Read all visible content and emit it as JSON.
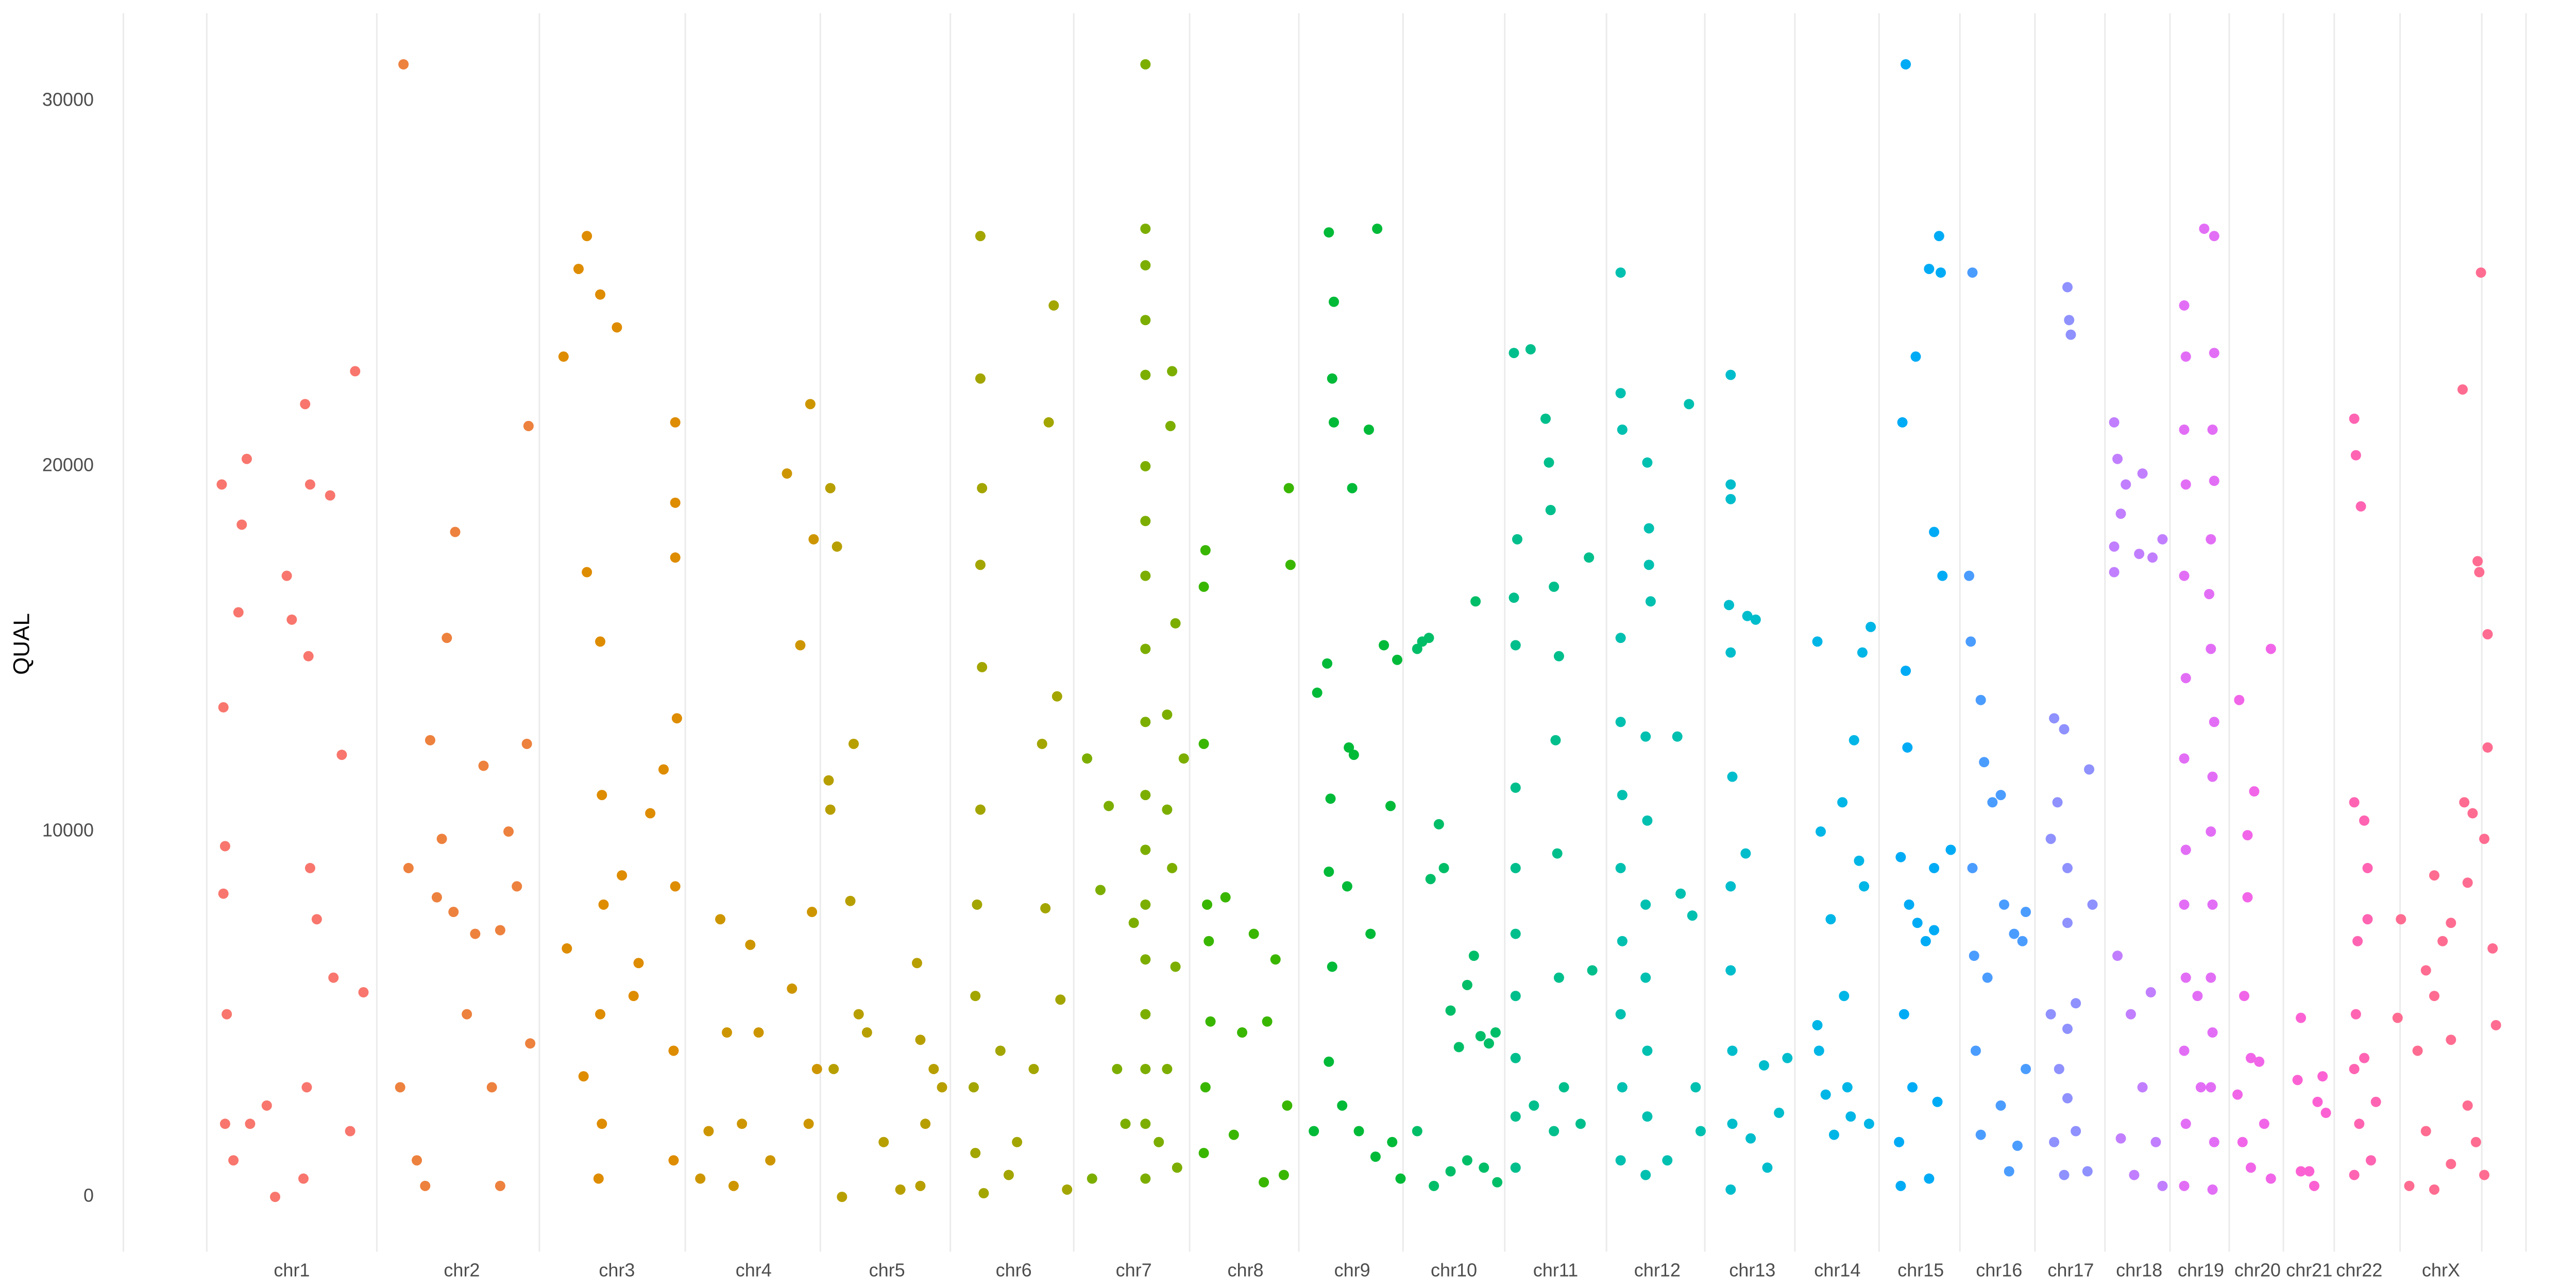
{
  "chart_data": {
    "type": "scatter",
    "y_label": "QUAL",
    "xlim": [
      74,
      1515
    ],
    "ylim": [
      -1500,
      32400
    ],
    "grid": true,
    "yticks": [
      0,
      10000,
      20000,
      30000
    ],
    "xticks": [
      {
        "value": 175,
        "label": "chr1"
      },
      {
        "value": 277,
        "label": "chr2"
      },
      {
        "value": 370,
        "label": "chr3"
      },
      {
        "value": 452,
        "label": "chr4"
      },
      {
        "value": 532,
        "label": "chr5"
      },
      {
        "value": 608,
        "label": "chr6"
      },
      {
        "value": 680,
        "label": "chr7"
      },
      {
        "value": 747,
        "label": "chr8"
      },
      {
        "value": 811,
        "label": "chr9"
      },
      {
        "value": 872,
        "label": "chr10"
      },
      {
        "value": 933,
        "label": "chr11"
      },
      {
        "value": 994,
        "label": "chr12"
      },
      {
        "value": 1051,
        "label": "chr13"
      },
      {
        "value": 1102,
        "label": "chr14"
      },
      {
        "value": 1152,
        "label": "chr15"
      },
      {
        "value": 1199,
        "label": "chr16"
      },
      {
        "value": 1242,
        "label": "chr17"
      },
      {
        "value": 1283,
        "label": "chr18"
      },
      {
        "value": 1320,
        "label": "chr19"
      },
      {
        "value": 1354,
        "label": "chr20"
      },
      {
        "value": 1385,
        "label": "chr21"
      },
      {
        "value": 1415,
        "label": "chr22"
      },
      {
        "value": 1464,
        "label": "chrX"
      }
    ],
    "series": [
      {
        "color": "#F8766D",
        "x": [
          133,
          134,
          135,
          134,
          136,
          135,
          140,
          148,
          145,
          143,
          160,
          172,
          175,
          183,
          186,
          185,
          186,
          184,
          182,
          198,
          205,
          213,
          210,
          218,
          200,
          165,
          150,
          190
        ],
        "values": [
          19500,
          13400,
          9600,
          8300,
          5000,
          2000,
          1000,
          20200,
          18400,
          16000,
          2500,
          17000,
          15800,
          21700,
          19500,
          14800,
          9000,
          3000,
          500,
          19200,
          12100,
          22600,
          1800,
          5600,
          6000,
          0,
          2000,
          7600
        ]
      },
      {
        "color": "#ED813E",
        "x": [
          242,
          245,
          240,
          250,
          258,
          265,
          273,
          268,
          272,
          280,
          290,
          295,
          300,
          305,
          310,
          317,
          316,
          318,
          255,
          285,
          262,
          300
        ],
        "values": [
          31000,
          9000,
          3000,
          1000,
          12500,
          9800,
          18200,
          15300,
          7800,
          5000,
          11800,
          3000,
          7300,
          10000,
          8500,
          21100,
          12400,
          4200,
          300,
          7200,
          8200,
          300
        ]
      },
      {
        "color": "#DE8C00",
        "x": [
          338,
          347,
          352,
          360,
          370,
          352,
          360,
          361,
          362,
          360,
          361,
          359,
          340,
          373,
          380,
          390,
          405,
          405,
          405,
          406,
          405,
          404,
          404,
          350,
          383,
          398
        ],
        "values": [
          23000,
          25400,
          26300,
          24700,
          23800,
          17100,
          15200,
          11000,
          8000,
          5000,
          2000,
          500,
          6800,
          8800,
          5500,
          10500,
          21200,
          19000,
          17500,
          13100,
          8500,
          4000,
          1000,
          3300,
          6400,
          11700
        ]
      },
      {
        "color": "#CD9600",
        "x": [
          420,
          425,
          432,
          436,
          445,
          450,
          455,
          472,
          480,
          486,
          488,
          487,
          490,
          485,
          475,
          440,
          462
        ],
        "values": [
          500,
          1800,
          7600,
          4500,
          2000,
          6900,
          4500,
          19800,
          15100,
          21700,
          18000,
          7800,
          3500,
          2000,
          5700,
          300,
          1000
        ]
      },
      {
        "color": "#B79F00",
        "x": [
          498,
          497,
          498,
          502,
          500,
          512,
          510,
          515,
          520,
          505,
          530,
          550,
          552,
          555,
          560,
          565,
          552,
          540
        ],
        "values": [
          19400,
          11400,
          10600,
          17800,
          3500,
          12400,
          8100,
          5000,
          4500,
          0,
          1500,
          6400,
          4300,
          2000,
          3500,
          3000,
          300,
          200
        ]
      },
      {
        "color": "#A3A500",
        "x": [
          588,
          588,
          589,
          588,
          589,
          588,
          586,
          585,
          584,
          585,
          590,
          600,
          610,
          620,
          625,
          627,
          629,
          632,
          634,
          636,
          640,
          605
        ],
        "values": [
          26300,
          22400,
          19400,
          17300,
          14500,
          10600,
          8000,
          5500,
          3000,
          1200,
          100,
          4000,
          1500,
          3500,
          12400,
          7900,
          21200,
          24400,
          13700,
          5400,
          200,
          600
        ]
      },
      {
        "color": "#7CAE00",
        "x": [
          687,
          687,
          687,
          687,
          687,
          687,
          687,
          687,
          687,
          687,
          687,
          687,
          687,
          687,
          687,
          687,
          687,
          687,
          652,
          660,
          665,
          670,
          675,
          680,
          703,
          702,
          705,
          700,
          700,
          703,
          705,
          700,
          706,
          710,
          655,
          695
        ],
        "values": [
          31000,
          26500,
          25500,
          24000,
          22500,
          20000,
          18500,
          17000,
          15000,
          13000,
          11000,
          9500,
          8000,
          6500,
          5000,
          3500,
          2000,
          500,
          12000,
          8400,
          10700,
          3500,
          2000,
          7500,
          22600,
          21100,
          15700,
          13200,
          10600,
          9000,
          6300,
          3500,
          800,
          12000,
          500,
          1500
        ]
      },
      {
        "color": "#39B600",
        "x": [
          722,
          723,
          722,
          724,
          725,
          726,
          723,
          722,
          735,
          745,
          752,
          760,
          765,
          773,
          774,
          772,
          770,
          740,
          758
        ],
        "values": [
          12400,
          17700,
          16700,
          8000,
          7000,
          4800,
          3000,
          1200,
          8200,
          4500,
          7200,
          4800,
          6500,
          19400,
          17300,
          2500,
          600,
          1700,
          400
        ]
      },
      {
        "color": "#00BA38",
        "x": [
          797,
          800,
          799,
          800,
          811,
          826,
          821,
          790,
          796,
          809,
          812,
          798,
          797,
          808,
          822,
          834,
          830,
          838,
          799,
          797,
          805,
          815,
          825,
          835,
          840,
          788
        ],
        "values": [
          26400,
          24500,
          22400,
          21200,
          19400,
          26500,
          21000,
          13800,
          14600,
          12300,
          12100,
          10900,
          8900,
          8500,
          7200,
          10700,
          15100,
          14700,
          6300,
          3700,
          2500,
          1800,
          1100,
          1500,
          500,
          1800
        ]
      },
      {
        "color": "#00BE67",
        "x": [
          850,
          853,
          857,
          885,
          858,
          863,
          866,
          870,
          875,
          880,
          884,
          888,
          893,
          897,
          890,
          880,
          870,
          860,
          850,
          898
        ],
        "values": [
          15000,
          15200,
          15300,
          16300,
          8700,
          10200,
          9000,
          5100,
          4100,
          5800,
          6600,
          4400,
          4200,
          4500,
          800,
          1000,
          700,
          300,
          1800,
          400
        ]
      },
      {
        "color": "#00BF8C",
        "x": [
          908,
          918,
          910,
          908,
          909,
          909,
          909,
          909,
          909,
          909,
          909,
          909,
          927,
          929,
          930,
          932,
          935,
          933,
          934,
          935,
          938,
          932,
          953,
          948,
          955,
          920
        ],
        "values": [
          23100,
          23200,
          18000,
          16400,
          15100,
          11200,
          9000,
          7200,
          5500,
          3800,
          2200,
          800,
          21300,
          20100,
          18800,
          16700,
          14800,
          12500,
          9400,
          6000,
          3000,
          1800,
          17500,
          2000,
          6200,
          2500
        ]
      },
      {
        "color": "#00C0B0",
        "x": [
          972,
          972,
          973,
          972,
          972,
          973,
          972,
          973,
          972,
          973,
          972,
          988,
          989,
          989,
          990,
          987,
          988,
          987,
          987,
          988,
          988,
          987,
          1006,
          1008,
          1013,
          1015,
          1017,
          1020,
          1000
        ],
        "values": [
          25300,
          22000,
          21000,
          15300,
          13000,
          11000,
          9000,
          7000,
          5000,
          3000,
          1000,
          20100,
          18300,
          17300,
          16300,
          12600,
          10300,
          8000,
          6000,
          4000,
          2200,
          600,
          12600,
          8300,
          21700,
          7700,
          3000,
          1800,
          1000
        ]
      },
      {
        "color": "#00BDCC",
        "x": [
          1038,
          1038,
          1038,
          1037,
          1038,
          1039,
          1038,
          1038,
          1039,
          1039,
          1038,
          1048,
          1053,
          1047,
          1050,
          1058,
          1060,
          1067,
          1072
        ],
        "values": [
          22500,
          19500,
          19100,
          16200,
          14900,
          11500,
          8500,
          6200,
          4000,
          2000,
          200,
          15900,
          15800,
          9400,
          1600,
          3600,
          800,
          2300,
          3800
        ]
      },
      {
        "color": "#00B6E6",
        "x": [
          1090,
          1092,
          1090,
          1091,
          1095,
          1098,
          1105,
          1106,
          1108,
          1110,
          1112,
          1117,
          1118,
          1122,
          1121,
          1100,
          1115
        ],
        "values": [
          15200,
          10000,
          4700,
          4000,
          2800,
          7600,
          10800,
          5500,
          3000,
          2200,
          12500,
          14900,
          8500,
          15600,
          2000,
          1700,
          9200
        ]
      },
      {
        "color": "#00ABF5",
        "x": [
          1143,
          1141,
          1149,
          1157,
          1163,
          1164,
          1160,
          1165,
          1143,
          1144,
          1140,
          1145,
          1150,
          1155,
          1160,
          1142,
          1147,
          1139,
          1140,
          1157,
          1160,
          1170,
          1162
        ],
        "values": [
          31000,
          21200,
          23000,
          25400,
          26300,
          25300,
          18200,
          17000,
          14400,
          12300,
          9300,
          8000,
          7500,
          7000,
          7300,
          5000,
          3000,
          1500,
          300,
          500,
          9000,
          9500,
          2600
        ]
      },
      {
        "color": "#4B9CFF",
        "x": [
          1183,
          1181,
          1182,
          1188,
          1190,
          1195,
          1200,
          1202,
          1208,
          1213,
          1215,
          1183,
          1184,
          1185,
          1188,
          1200,
          1205,
          1210,
          1215,
          1192
        ],
        "values": [
          25300,
          17000,
          15200,
          13600,
          11900,
          10800,
          11000,
          8000,
          7200,
          7000,
          7800,
          9000,
          6600,
          4000,
          1700,
          2500,
          700,
          1400,
          3500,
          6000
        ]
      },
      {
        "color": "#8F91FF",
        "x": [
          1240,
          1241,
          1242,
          1232,
          1238,
          1234,
          1230,
          1240,
          1253,
          1240,
          1245,
          1240,
          1235,
          1240,
          1232,
          1238,
          1245,
          1252,
          1255,
          1230
        ],
        "values": [
          24900,
          24000,
          23600,
          13100,
          12800,
          10800,
          9800,
          9000,
          11700,
          7500,
          5300,
          4600,
          3500,
          2700,
          1500,
          600,
          1800,
          700,
          8000,
          5000
        ]
      },
      {
        "color": "#C17FFF",
        "x": [
          1268,
          1270,
          1275,
          1272,
          1268,
          1268,
          1285,
          1283,
          1291,
          1297,
          1270,
          1278,
          1290,
          1272,
          1280,
          1293,
          1297,
          1285
        ],
        "values": [
          21200,
          20200,
          19500,
          18700,
          17800,
          17100,
          19800,
          17600,
          17500,
          18000,
          6600,
          5000,
          5600,
          1600,
          600,
          1500,
          300,
          3000
        ]
      },
      {
        "color": "#E36EF6",
        "x": [
          1310,
          1311,
          1310,
          1311,
          1310,
          1311,
          1310,
          1311,
          1310,
          1311,
          1310,
          1311,
          1310,
          1322,
          1328,
          1328,
          1327,
          1328,
          1326,
          1325,
          1326,
          1328,
          1327,
          1326,
          1327,
          1326,
          1327,
          1326,
          1328,
          1327,
          1318,
          1320
        ],
        "values": [
          24400,
          23000,
          21000,
          19500,
          17000,
          14200,
          12000,
          9500,
          8000,
          6000,
          4000,
          2000,
          300,
          26500,
          26300,
          23100,
          21000,
          19600,
          18000,
          16500,
          15000,
          13000,
          11500,
          10000,
          8000,
          6000,
          4500,
          3000,
          1500,
          200,
          5500,
          3000
        ]
      },
      {
        "color": "#F166E8",
        "x": [
          1343,
          1352,
          1362,
          1348,
          1348,
          1346,
          1350,
          1355,
          1345,
          1350,
          1358,
          1362,
          1342
        ],
        "values": [
          13600,
          11100,
          15000,
          9900,
          8200,
          5500,
          3800,
          3700,
          1500,
          800,
          2000,
          500,
          2800
        ]
      },
      {
        "color": "#FC61D3",
        "x": [
          1380,
          1378,
          1385,
          1390,
          1393,
          1395,
          1380,
          1388
        ],
        "values": [
          4900,
          3200,
          700,
          2600,
          3300,
          2300,
          700,
          300
        ]
      },
      {
        "color": "#FF64B3",
        "x": [
          1412,
          1413,
          1416,
          1412,
          1418,
          1420,
          1414,
          1420,
          1413,
          1412,
          1418,
          1415,
          1412,
          1425,
          1422
        ],
        "values": [
          21300,
          20300,
          18900,
          10800,
          10300,
          9000,
          7000,
          7600,
          5000,
          3500,
          3800,
          2000,
          600,
          2600,
          1000
        ]
      },
      {
        "color": "#FF6C91",
        "x": [
          1488,
          1477,
          1486,
          1487,
          1492,
          1492,
          1478,
          1483,
          1490,
          1480,
          1470,
          1465,
          1460,
          1455,
          1440,
          1438,
          1450,
          1460,
          1470,
          1480,
          1485,
          1490,
          1445,
          1455,
          1470,
          1495,
          1497,
          1460
        ],
        "values": [
          25300,
          22100,
          17400,
          17100,
          15400,
          12300,
          10800,
          10500,
          9800,
          8600,
          7500,
          7000,
          8800,
          6200,
          7600,
          4900,
          4000,
          5500,
          4300,
          2500,
          1500,
          600,
          300,
          1800,
          900,
          6800,
          4700,
          200
        ]
      }
    ]
  }
}
